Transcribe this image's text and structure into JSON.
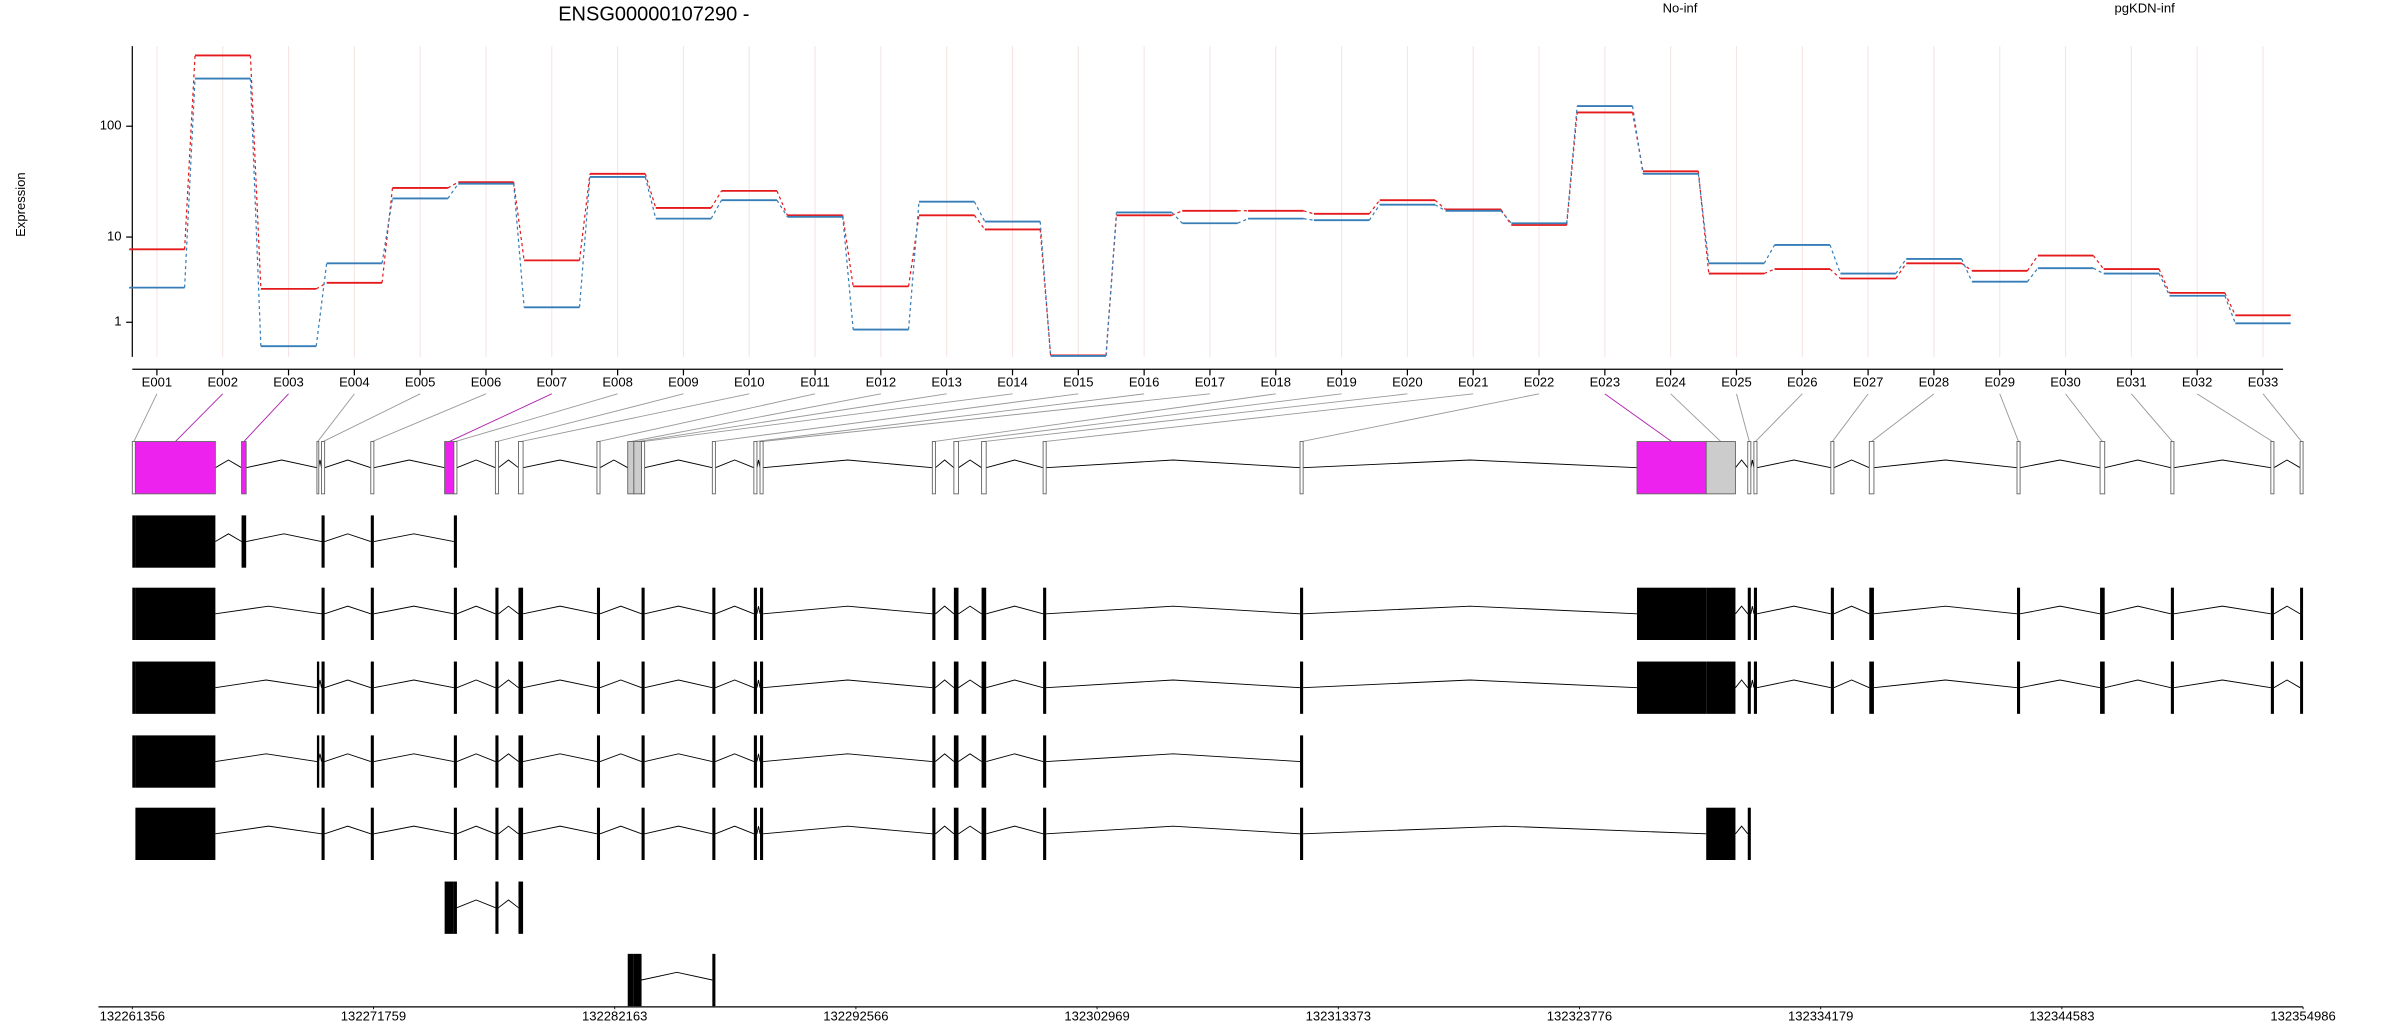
{
  "chart_data": {
    "type": "step",
    "title": "ENSG00000107290 -",
    "y_label": "Expression",
    "yscale": "log1p",
    "ylim": [
      0,
      500
    ],
    "yticks": [
      1,
      10,
      100
    ],
    "grid": true,
    "categories": [
      "E001",
      "E002",
      "E003",
      "E004",
      "E005",
      "E006",
      "E007",
      "E008",
      "E009",
      "E010",
      "E011",
      "E012",
      "E013",
      "E014",
      "E015",
      "E016",
      "E017",
      "E018",
      "E019",
      "E020",
      "E021",
      "E022",
      "E023",
      "E024",
      "E025",
      "E026",
      "E027",
      "E028",
      "E029",
      "E030",
      "E031",
      "E032",
      "E033"
    ],
    "series": [
      {
        "name": "No-inf",
        "color": "#e41a1c",
        "values": [
          7.6,
          415,
          2.9,
          3.4,
          28.4,
          32,
          5.9,
          38,
          18.7,
          26.7,
          16,
          3.1,
          16,
          11.8,
          0.03,
          16,
          17.6,
          17.6,
          16.5,
          22,
          18.1,
          13,
          132,
          40,
          4.3,
          4.8,
          3.8,
          5.5,
          4.6,
          6.6,
          4.8,
          2.6,
          1.3
        ]
      },
      {
        "name": "pgKDN-inf",
        "color": "#377eb8",
        "values": [
          3.0,
          261,
          0.24,
          5.5,
          22.8,
          31,
          1.7,
          35.6,
          14.9,
          22,
          15.5,
          0.73,
          21.3,
          14,
          0.02,
          17,
          13.5,
          14.9,
          14.4,
          20,
          17.6,
          13.5,
          150,
          38,
          5.5,
          8.4,
          4.3,
          6.1,
          3.5,
          4.9,
          4.3,
          2.4,
          0.96
        ]
      }
    ],
    "gene_model": {
      "xlim": [
        132261356,
        132354986
      ],
      "xticks": [
        132261356,
        132271759,
        132282163,
        132292566,
        132302969,
        132313373,
        132323776,
        132334179,
        132344583,
        132354986
      ],
      "exons": [
        {
          "start": 132261356,
          "end": 132261489,
          "fill": "#ffffff"
        },
        {
          "start": 132261489,
          "end": 132264939,
          "fill": "#ee22ee"
        },
        {
          "start": 132266068,
          "end": 132266267,
          "fill": "#ee22ee"
        },
        {
          "start": 132269319,
          "end": 132269386,
          "fill": "#ffffff"
        },
        {
          "start": 132269518,
          "end": 132269651,
          "fill": "#ffffff"
        },
        {
          "start": 132271642,
          "end": 132271775,
          "fill": "#ffffff"
        },
        {
          "start": 132274827,
          "end": 132275225,
          "fill": "#ee22ee"
        },
        {
          "start": 132275225,
          "end": 132275358,
          "fill": "#ffffff"
        },
        {
          "start": 132277017,
          "end": 132277150,
          "fill": "#ffffff"
        },
        {
          "start": 132278012,
          "end": 132278211,
          "fill": "#ffffff"
        },
        {
          "start": 132281397,
          "end": 132281529,
          "fill": "#ffffff"
        },
        {
          "start": 132282724,
          "end": 132282989,
          "fill": "#cccccc"
        },
        {
          "start": 132282989,
          "end": 132283321,
          "fill": "#cccccc"
        },
        {
          "start": 132283321,
          "end": 132283454,
          "fill": "#ffffff"
        },
        {
          "start": 132286374,
          "end": 132286506,
          "fill": "#ffffff"
        },
        {
          "start": 132288165,
          "end": 132288298,
          "fill": "#ffffff"
        },
        {
          "start": 132288431,
          "end": 132288564,
          "fill": "#ffffff"
        },
        {
          "start": 132295863,
          "end": 132295996,
          "fill": "#ffffff"
        },
        {
          "start": 132296792,
          "end": 132296991,
          "fill": "#ffffff"
        },
        {
          "start": 132297987,
          "end": 132298186,
          "fill": "#ffffff"
        },
        {
          "start": 132300641,
          "end": 132300774,
          "fill": "#ffffff"
        },
        {
          "start": 132311723,
          "end": 132311856,
          "fill": "#ffffff"
        },
        {
          "start": 132326256,
          "end": 132329242,
          "fill": "#ee22ee"
        },
        {
          "start": 132329242,
          "end": 132330503,
          "fill": "#cccccc"
        },
        {
          "start": 132331034,
          "end": 132331167,
          "fill": "#ffffff"
        },
        {
          "start": 132331299,
          "end": 132331432,
          "fill": "#ffffff"
        },
        {
          "start": 132334617,
          "end": 132334750,
          "fill": "#ffffff"
        },
        {
          "start": 132336276,
          "end": 132336476,
          "fill": "#ffffff"
        },
        {
          "start": 132342647,
          "end": 132342780,
          "fill": "#ffffff"
        },
        {
          "start": 132346230,
          "end": 132346430,
          "fill": "#ffffff"
        },
        {
          "start": 132349283,
          "end": 132349416,
          "fill": "#ffffff"
        },
        {
          "start": 132353596,
          "end": 132353729,
          "fill": "#ffffff"
        },
        {
          "start": 132354857,
          "end": 132354986,
          "fill": "#ffffff"
        }
      ],
      "transcripts": [
        [
          0,
          1,
          2,
          4,
          5,
          7
        ],
        [
          0,
          1,
          4,
          5,
          7,
          8,
          9,
          10,
          13,
          14,
          15,
          16,
          17,
          18,
          19,
          20,
          21,
          22,
          23,
          24,
          25,
          26,
          27,
          28,
          29,
          30,
          31,
          32
        ],
        [
          0,
          1,
          3,
          4,
          5,
          7,
          8,
          9,
          10,
          13,
          14,
          15,
          16,
          17,
          18,
          19,
          20,
          21,
          22,
          23,
          24,
          25,
          26,
          27,
          28,
          29,
          30,
          31,
          32
        ],
        [
          0,
          1,
          3,
          4,
          5,
          7,
          8,
          9,
          10,
          13,
          14,
          15,
          16,
          17,
          18,
          19,
          20,
          21
        ],
        [
          1,
          4,
          5,
          7,
          8,
          9,
          10,
          13,
          14,
          15,
          16,
          17,
          18,
          19,
          20,
          21,
          23,
          24
        ],
        [
          6,
          7,
          8,
          9
        ],
        [
          11,
          12,
          14
        ]
      ]
    }
  }
}
